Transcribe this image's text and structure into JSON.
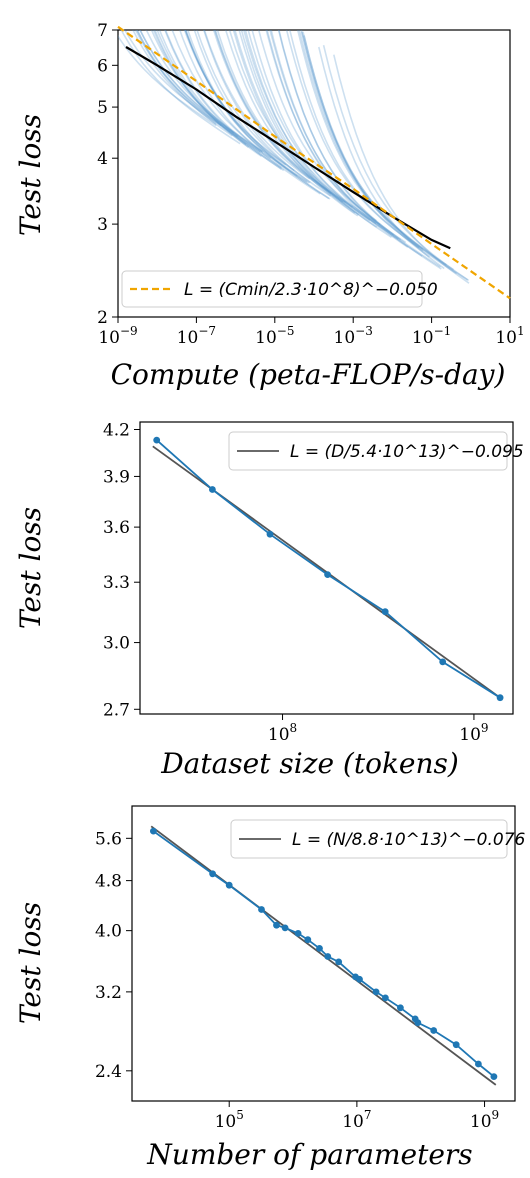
{
  "chart_data": [
    {
      "type": "line",
      "xlabel": "Compute (peta-FLOP/s-day)",
      "ylabel": "Test loss",
      "xscale": "log",
      "yscale": "log",
      "xlim": [
        1e-09,
        10
      ],
      "ylim": [
        2,
        7
      ],
      "xticks": [
        1e-09,
        1e-07,
        1e-05,
        0.001,
        0.1,
        10
      ],
      "xtick_labels": [
        "10−9",
        "10−7",
        "10−5",
        "10−3",
        "10−1",
        "101"
      ],
      "yticks": [
        2,
        3,
        4,
        5,
        6,
        7
      ],
      "ytick_labels": [
        "2",
        "3",
        "4",
        "5",
        "6",
        "7"
      ],
      "legend_position": "lower-left",
      "legend": [
        "L = (Cmin/2.3·10^8)^−0.050"
      ],
      "colors": {
        "fit": "#f0a500",
        "runs": "#4a90c8",
        "frontier": "#000000"
      },
      "series": [
        {
          "name": "L = (Cmin/2.3·10^8)^−0.050",
          "style": "dashed",
          "kind": "fit",
          "x": [
            1e-09,
            1e-07,
            1e-05,
            0.001,
            0.1,
            10
          ],
          "y": [
            7.1,
            5.6,
            4.4,
            3.5,
            2.75,
            2.17
          ]
        },
        {
          "kind": "frontier",
          "x": [
            1.6e-09,
            1e-08,
            1e-07,
            1e-06,
            1e-05,
            0.0001,
            0.001,
            0.01,
            0.1,
            0.3
          ],
          "y": [
            6.5,
            6.0,
            5.4,
            4.8,
            4.3,
            3.85,
            3.45,
            3.1,
            2.8,
            2.7
          ]
        },
        {
          "kind": "runs",
          "count": 60
        }
      ]
    },
    {
      "type": "line",
      "xlabel": "Dataset size (tokens)",
      "ylabel": "Test loss",
      "xscale": "log",
      "yscale": "log",
      "xlim": [
        18000000.0,
        1600000000.0
      ],
      "ylim": [
        2.68,
        4.25
      ],
      "xticks": [
        100000000.0,
        1000000000.0
      ],
      "xtick_labels": [
        "108",
        "109"
      ],
      "yticks": [
        2.7,
        3.0,
        3.3,
        3.6,
        3.9,
        4.2
      ],
      "ytick_labels": [
        "2.7",
        "3.0",
        "3.3",
        "3.6",
        "3.9",
        "4.2"
      ],
      "legend_position": "top-right",
      "legend": [
        "L = (D/5.4·10^13)^−0.095"
      ],
      "colors": {
        "fit": "#555555",
        "data": "#1f77b4"
      },
      "series": [
        {
          "name": "L = (D/5.4·10^13)^−0.095",
          "kind": "fit",
          "x": [
            21000000.0,
            1370000000.0
          ],
          "y": [
            4.09,
            2.75
          ]
        },
        {
          "kind": "data",
          "x": [
            22000000.0,
            43000000.0,
            86000000.0,
            172000000.0,
            344000000.0,
            687000000.0,
            1370000000.0
          ],
          "y": [
            4.13,
            3.82,
            3.56,
            3.34,
            3.15,
            2.91,
            2.75
          ]
        }
      ]
    },
    {
      "type": "line",
      "xlabel": "Number of parameters",
      "ylabel": "Test loss",
      "xscale": "log",
      "yscale": "log",
      "xlim": [
        3000.0,
        3000000000.0
      ],
      "ylim": [
        2.15,
        6.3
      ],
      "xticks": [
        100000.0,
        10000000.0,
        1000000000.0
      ],
      "xtick_labels": [
        "105",
        "107",
        "109"
      ],
      "yticks": [
        2.4,
        3.2,
        4.0,
        4.8,
        5.6
      ],
      "ytick_labels": [
        "2.4",
        "3.2",
        "4.0",
        "4.8",
        "5.6"
      ],
      "legend_position": "top-right",
      "legend": [
        "L = (N/8.8·10^13)^−0.076"
      ],
      "colors": {
        "fit": "#555555",
        "data": "#1f77b4"
      },
      "series": [
        {
          "name": "L = (N/8.8·10^13)^−0.076",
          "kind": "fit",
          "x": [
            6000.0,
            1500000000.0
          ],
          "y": [
            5.85,
            2.28
          ]
        },
        {
          "kind": "data",
          "x": [
            6500.0,
            55000.0,
            100000.0,
            320000.0,
            550000.0,
            750000.0,
            1200000.0,
            1700000.0,
            2600000.0,
            3500000.0,
            5200000.0,
            9500000.0,
            11000000.0,
            20000000.0,
            28000000.0,
            48000000.0,
            82000000.0,
            90000000.0,
            160000000.0,
            360000000.0,
            800000000.0,
            1400000000.0
          ],
          "y": [
            5.75,
            4.92,
            4.72,
            4.32,
            4.08,
            4.04,
            3.96,
            3.87,
            3.75,
            3.64,
            3.57,
            3.38,
            3.35,
            3.2,
            3.13,
            3.02,
            2.9,
            2.86,
            2.78,
            2.64,
            2.46,
            2.35
          ]
        }
      ]
    }
  ]
}
